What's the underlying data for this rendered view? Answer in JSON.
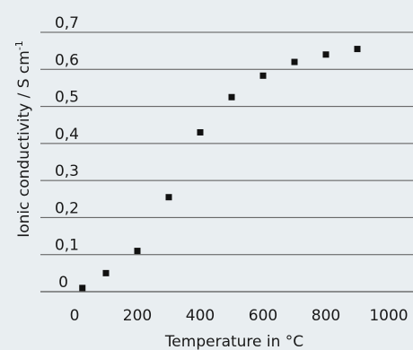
{
  "chart_data": {
    "type": "scatter",
    "xlabel": "Temperature in °C",
    "ylabel": "Ionic conductivity / S cm",
    "ylabel_superscript": "-1",
    "xlim": [
      0,
      1000
    ],
    "ylim": [
      0,
      0.7
    ],
    "xticks": [
      0,
      200,
      400,
      600,
      800,
      1000
    ],
    "yticks": [
      0,
      0.1,
      0.2,
      0.3,
      0.4,
      0.5,
      0.6,
      0.7
    ],
    "xtick_labels": [
      "0",
      "200",
      "400",
      "600",
      "800",
      "1000"
    ],
    "ytick_labels": [
      "0",
      "0,1",
      "0,2",
      "0,3",
      "0,4",
      "0,5",
      "0,6",
      "0,7"
    ],
    "grid": "horizontal",
    "points": [
      {
        "x": 25,
        "y": 0.01
      },
      {
        "x": 100,
        "y": 0.05
      },
      {
        "x": 200,
        "y": 0.11
      },
      {
        "x": 300,
        "y": 0.255
      },
      {
        "x": 400,
        "y": 0.43
      },
      {
        "x": 500,
        "y": 0.525
      },
      {
        "x": 600,
        "y": 0.583
      },
      {
        "x": 700,
        "y": 0.62
      },
      {
        "x": 800,
        "y": 0.64
      },
      {
        "x": 900,
        "y": 0.655
      }
    ],
    "colors": {
      "marker": "#111111",
      "grid": "#555555",
      "background": "#e9eef1"
    }
  }
}
